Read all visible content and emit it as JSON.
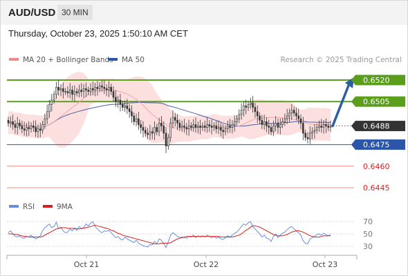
{
  "header": {
    "symbol": "AUD/USD",
    "timeframe": "30 MIN"
  },
  "datetime": "Thursday, October 23, 2025 1:50:10 AM CET",
  "legend": {
    "ma20": "MA 20 + Bollinger Bands",
    "ma50": "MA 50",
    "research": "Research © 2025 Trading Central"
  },
  "rsi_legend": {
    "rsi": "RSI",
    "ma9": "9MA"
  },
  "colors": {
    "green": "#5a9e1c",
    "blue": "#2a55a8",
    "red_line": "#f08a8a",
    "red_label": "#d62020",
    "band": "#fbdada",
    "ma20": "#f3a4a4",
    "ma50": "#4a5ea8",
    "candle": "#333333",
    "arrow": "#2c5f9e",
    "rsi": "#6a8cdc"
  },
  "chart_data": [
    {
      "type": "candlestick",
      "title": "",
      "y_scale_labels": [
        "0.6520",
        "0.6505",
        "0.6488",
        "0.6475",
        "0.6460",
        "0.6445"
      ],
      "levels": [
        {
          "value": 0.652,
          "label": "0.6520",
          "style": "resistance",
          "color": "#5a9e1c"
        },
        {
          "value": 0.6505,
          "label": "0.6505",
          "style": "resistance",
          "color": "#5a9e1c"
        },
        {
          "value": 0.6488,
          "label": "0.6488",
          "style": "current",
          "color": "#333333"
        },
        {
          "value": 0.6475,
          "label": "0.6475",
          "style": "pivot",
          "color": "#2a55a8"
        },
        {
          "value": 0.646,
          "label": "0.6460",
          "style": "support",
          "color": "#d62020"
        },
        {
          "value": 0.6445,
          "label": "0.6445",
          "style": "support",
          "color": "#d62020"
        }
      ],
      "ylim": [
        0.644,
        0.653
      ],
      "x_labels": [
        "Oct 21",
        "Oct 22",
        "Oct 23"
      ],
      "series": [
        {
          "name": "MA 20 + Bollinger Bands"
        },
        {
          "name": "MA 50"
        }
      ],
      "closes": [
        0.649,
        0.6491,
        0.6489,
        0.6487,
        0.649,
        0.6488,
        0.6486,
        0.6485,
        0.6487,
        0.6486,
        0.6488,
        0.6487,
        0.6484,
        0.6486,
        0.6485,
        0.6489,
        0.6493,
        0.6498,
        0.6503,
        0.6506,
        0.651,
        0.6515,
        0.6513,
        0.6514,
        0.6512,
        0.6512,
        0.6511,
        0.6513,
        0.651,
        0.6512,
        0.6511,
        0.6513,
        0.6512,
        0.6514,
        0.6513,
        0.6512,
        0.6514,
        0.6513,
        0.6515,
        0.6514,
        0.6516,
        0.6515,
        0.6514,
        0.6513,
        0.6515,
        0.6512,
        0.6508,
        0.6505,
        0.6506,
        0.6503,
        0.6501,
        0.6502,
        0.65,
        0.6498,
        0.6495,
        0.6491,
        0.6493,
        0.6489,
        0.6487,
        0.6485,
        0.6483,
        0.6482,
        0.6484,
        0.6483,
        0.6487,
        0.6484,
        0.649,
        0.6488,
        0.6483,
        0.6474,
        0.648,
        0.649,
        0.6494,
        0.6492,
        0.649,
        0.6487,
        0.6488,
        0.6487,
        0.6486,
        0.6488,
        0.6487,
        0.6489,
        0.6487,
        0.6488,
        0.6487,
        0.6488,
        0.6487,
        0.6489,
        0.6488,
        0.6487,
        0.6488,
        0.6486,
        0.6487,
        0.6485,
        0.6484,
        0.6486,
        0.6488,
        0.6487,
        0.6489,
        0.6491,
        0.6493,
        0.6496,
        0.6499,
        0.6502,
        0.6501,
        0.6503,
        0.6504,
        0.6501,
        0.6498,
        0.6495,
        0.6492,
        0.6489,
        0.6491,
        0.6488,
        0.6487,
        0.6484,
        0.6488,
        0.649,
        0.6487,
        0.6489,
        0.6491,
        0.6493,
        0.6495,
        0.6497,
        0.6499,
        0.6497,
        0.6495,
        0.6493,
        0.649,
        0.6483,
        0.648,
        0.6479,
        0.6483,
        0.6484,
        0.6485,
        0.6487,
        0.6488,
        0.6487,
        0.6489,
        0.6488,
        0.6487,
        0.6488
      ]
    },
    {
      "type": "line",
      "title": "RSI",
      "y_scale_labels": [
        "70",
        "50",
        "30"
      ],
      "ylim": [
        20,
        80
      ],
      "series": [
        {
          "name": "RSI",
          "values": [
            52,
            55,
            50,
            46,
            45,
            47,
            44,
            43,
            46,
            45,
            48,
            44,
            42,
            44,
            47,
            55,
            60,
            63,
            66,
            60,
            62,
            69,
            58,
            61,
            55,
            52,
            53,
            58,
            55,
            60,
            56,
            62,
            58,
            60,
            66,
            63,
            67,
            70,
            62,
            58,
            54,
            52,
            55,
            54,
            56,
            52,
            48,
            44,
            46,
            42,
            40,
            45,
            42,
            40,
            38,
            36,
            40,
            35,
            33,
            31,
            30,
            29,
            33,
            32,
            38,
            34,
            42,
            40,
            35,
            28,
            37,
            48,
            52,
            49,
            46,
            44,
            45,
            44,
            43,
            46,
            45,
            48,
            44,
            47,
            45,
            47,
            45,
            48,
            46,
            44,
            46,
            43,
            45,
            42,
            41,
            44,
            47,
            45,
            48,
            51,
            53,
            57,
            62,
            66,
            64,
            68,
            70,
            62,
            58,
            54,
            50,
            45,
            48,
            43,
            42,
            38,
            46,
            50,
            44,
            48,
            51,
            53,
            57,
            60,
            62,
            58,
            55,
            52,
            48,
            39,
            35,
            34,
            42,
            44,
            46,
            49,
            50,
            48,
            51,
            49,
            47,
            49
          ]
        },
        {
          "name": "9MA",
          "values": [
            50,
            50,
            50,
            49,
            49,
            48,
            47,
            46,
            46,
            45,
            45,
            45,
            45,
            45,
            45,
            46,
            48,
            50,
            52,
            54,
            56,
            58,
            59,
            60,
            60,
            60,
            59,
            59,
            59,
            58,
            58,
            58,
            59,
            59,
            60,
            61,
            62,
            63,
            64,
            63,
            62,
            61,
            60,
            59,
            58,
            56,
            55,
            53,
            51,
            50,
            48,
            47,
            46,
            45,
            44,
            43,
            42,
            41,
            40,
            39,
            38,
            37,
            36,
            35,
            34,
            34,
            34,
            35,
            35,
            35,
            35,
            36,
            38,
            40,
            42,
            43,
            44,
            45,
            46,
            46,
            46,
            46,
            46,
            46,
            46,
            46,
            46,
            46,
            46,
            46,
            46,
            46,
            46,
            45,
            45,
            45,
            45,
            45,
            45,
            46,
            47,
            48,
            50,
            53,
            56,
            58,
            61,
            63,
            63,
            62,
            61,
            59,
            57,
            55,
            53,
            51,
            49,
            48,
            47,
            47,
            47,
            48,
            49,
            51,
            53,
            54,
            55,
            55,
            54,
            53,
            51,
            49,
            47,
            46,
            45,
            45,
            45,
            46,
            47,
            47,
            47,
            47
          ]
        }
      ]
    }
  ]
}
